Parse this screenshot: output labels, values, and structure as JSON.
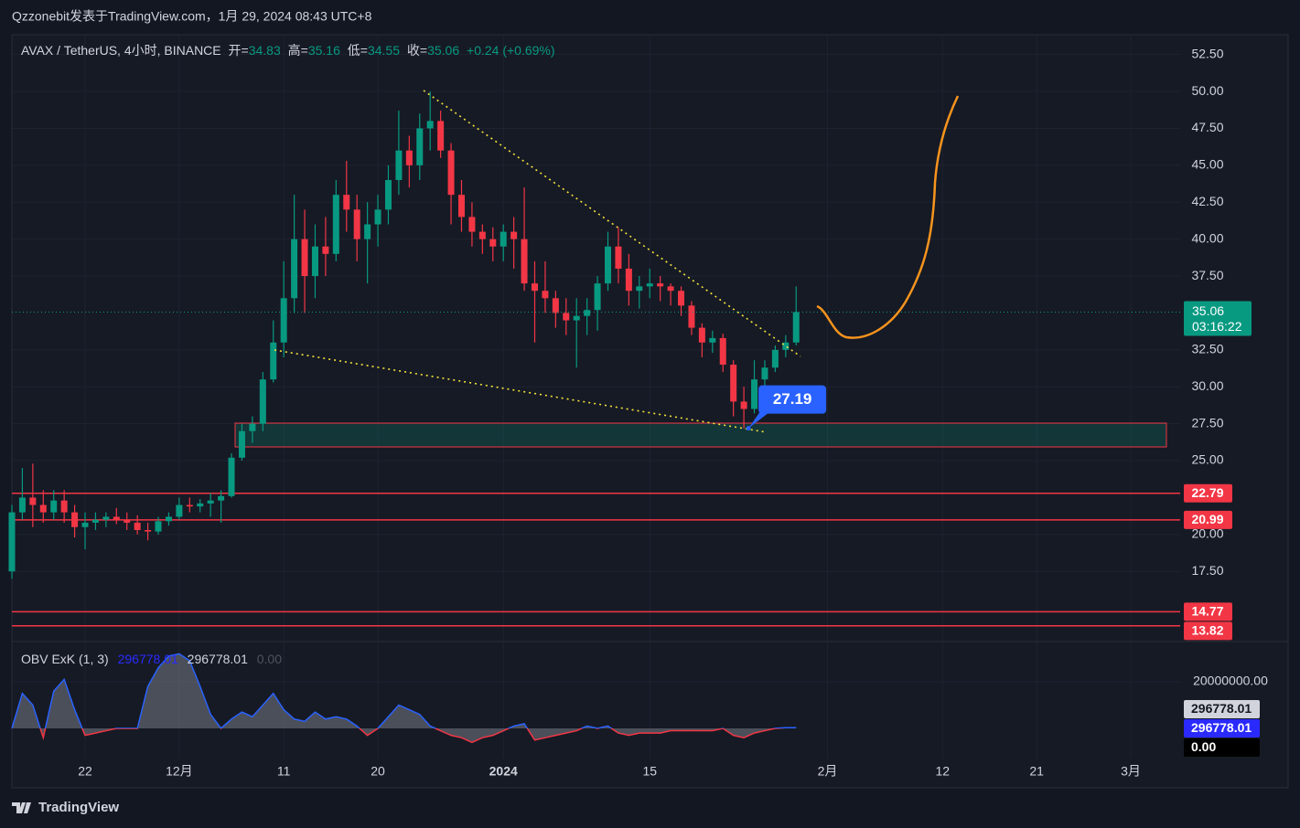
{
  "header": "Qzzonebit发表于TradingView.com，1月 29, 2024 08:43 UTC+8",
  "footer": "TradingView",
  "chart_data": {
    "type": "candlestick",
    "legend": {
      "symbol": "AVAX / TetherUS, 4小时, BINANCE",
      "fields": [
        {
          "label": "开=",
          "value": 34.83
        },
        {
          "label": "高=",
          "value": 35.16
        },
        {
          "label": "低=",
          "value": 34.55
        },
        {
          "label": "收=",
          "value": 35.06
        }
      ],
      "change": "+0.24 (+0.69%)"
    },
    "categories": [
      null,
      null,
      null,
      null,
      null,
      null,
      null,
      "22",
      null,
      null,
      null,
      null,
      null,
      null,
      null,
      null,
      "12月",
      null,
      null,
      null,
      null,
      null,
      null,
      null,
      null,
      null,
      "11",
      null,
      null,
      null,
      null,
      null,
      null,
      null,
      null,
      "20",
      null,
      null,
      null,
      null,
      null,
      null,
      null,
      null,
      null,
      null,
      null,
      "2024",
      null,
      null,
      null,
      null,
      null,
      null,
      null,
      null,
      null,
      null,
      null,
      null,
      null,
      "15",
      null,
      null,
      null,
      null,
      null,
      null,
      null,
      null,
      null,
      null,
      null,
      null,
      null,
      null,
      null,
      null,
      "2月",
      null,
      null,
      null,
      null,
      null,
      null,
      null,
      null,
      null,
      null,
      "12",
      null,
      null,
      null,
      null,
      null,
      null,
      null,
      null,
      "21",
      null,
      null,
      null,
      null,
      null,
      null,
      null,
      null,
      "3月",
      null,
      null,
      null
    ],
    "ohlc": {
      "up_color": "#089981",
      "down_color": "#f23645",
      "open": [
        17.5,
        21.5,
        22.5,
        22,
        21.5,
        22.3,
        21.5,
        20.5,
        20.8,
        21,
        21.2,
        21,
        20.8,
        20.3,
        20.2,
        20.9,
        21.2,
        22,
        21.9,
        22.1,
        22.3,
        22.6,
        25.2,
        27,
        27.5,
        30.5,
        33,
        36,
        40,
        37.5,
        39.5,
        39,
        43,
        42,
        40,
        41,
        42,
        44,
        46,
        45,
        47.5,
        48,
        46,
        43,
        41.5,
        40.5,
        40,
        39.5,
        40.5,
        40,
        37,
        36.5,
        36,
        35,
        34.5,
        34.8,
        35.2,
        37,
        39.5,
        38,
        36.5,
        36.8,
        37,
        36.8,
        36.5,
        35.5,
        34,
        33,
        33.3,
        31.5,
        29,
        28.5,
        30.5,
        31.3,
        32.5,
        33,
        null,
        null,
        null,
        null,
        null,
        null,
        null,
        null,
        null,
        null,
        null,
        null,
        null,
        null,
        null,
        null,
        null,
        null,
        null,
        null,
        null,
        null,
        null,
        null,
        null,
        null,
        null,
        null,
        null,
        null,
        null,
        null,
        null,
        null,
        null
      ],
      "high": [
        22,
        24.5,
        24.8,
        23,
        23,
        23,
        22,
        21.5,
        21.5,
        21.5,
        21.8,
        21.5,
        21.3,
        20.8,
        21.2,
        21.5,
        22.5,
        22.5,
        22.4,
        22.8,
        23,
        25.5,
        27.5,
        28,
        31,
        34.5,
        38.5,
        43,
        42,
        41,
        41.5,
        44,
        45.3,
        43,
        42.5,
        43,
        45,
        48.7,
        47,
        48.5,
        50,
        48.7,
        46.5,
        44,
        42.5,
        41,
        40.8,
        41,
        41.5,
        43.5,
        38.5,
        38.5,
        36.5,
        36,
        36,
        36,
        37.5,
        40.5,
        40.8,
        39,
        37.5,
        38,
        37.5,
        37,
        36.8,
        35.8,
        34.3,
        33.8,
        33.6,
        31.8,
        30,
        31.8,
        31.8,
        32.8,
        33.5,
        36.8,
        null,
        null,
        null,
        null,
        null,
        null,
        null,
        null,
        null,
        null,
        null,
        null,
        null,
        null,
        null,
        null,
        null,
        null,
        null,
        null,
        null,
        null,
        null,
        null,
        null,
        null,
        null,
        null,
        null,
        null,
        null,
        null,
        null,
        null,
        null
      ],
      "low": [
        17,
        21,
        20.5,
        20.8,
        21,
        20.8,
        19.8,
        19,
        20.3,
        20.5,
        20.7,
        20.3,
        20,
        19.6,
        20,
        20.6,
        21,
        21.5,
        21.5,
        21.2,
        20.8,
        22.5,
        25,
        26.2,
        27,
        30.3,
        32,
        35,
        35,
        36,
        37.5,
        38.5,
        40.5,
        38.5,
        37,
        39.5,
        41,
        43,
        43.5,
        44,
        46,
        45.5,
        41,
        40.5,
        39.5,
        39,
        38.5,
        38.5,
        38,
        36.5,
        33,
        35,
        34,
        33.5,
        31.3,
        33.5,
        33.8,
        36.5,
        37,
        35.5,
        35.3,
        36,
        35.8,
        35.5,
        34.8,
        33.5,
        32,
        32.3,
        31,
        28,
        27.19,
        28.2,
        30,
        31,
        32,
        32.8,
        null,
        null,
        null,
        null,
        null,
        null,
        null,
        null,
        null,
        null,
        null,
        null,
        null,
        null,
        null,
        null,
        null,
        null,
        null,
        null,
        null,
        null,
        null,
        null,
        null,
        null,
        null,
        null,
        null,
        null,
        null,
        null,
        null,
        null,
        null
      ],
      "close": [
        21.5,
        22.5,
        22,
        21.5,
        22.3,
        21.5,
        20.5,
        20.8,
        21,
        21.2,
        21,
        20.8,
        20.3,
        20.2,
        20.9,
        21.2,
        22,
        21.9,
        22.1,
        22.3,
        22.6,
        25.2,
        27,
        27.5,
        30.5,
        33,
        36,
        40,
        37.5,
        39.5,
        39,
        43,
        42,
        40,
        41,
        42,
        44,
        46,
        45,
        47.5,
        48,
        46,
        43,
        41.5,
        40.5,
        40,
        39.5,
        40.5,
        40,
        37,
        36.5,
        36,
        35,
        34.5,
        34.8,
        35.2,
        37,
        39.5,
        38,
        36.5,
        36.8,
        37,
        36.8,
        36.5,
        35.5,
        34,
        33,
        33.3,
        31.5,
        29,
        28.5,
        30.5,
        31.3,
        32.5,
        33,
        35.06,
        null,
        null,
        null,
        null,
        null,
        null,
        null,
        null,
        null,
        null,
        null,
        null,
        null,
        null,
        null,
        null,
        null,
        null,
        null,
        null,
        null,
        null,
        null,
        null,
        null,
        null,
        null,
        null,
        null,
        null,
        null,
        null,
        null,
        null,
        null
      ]
    },
    "ylim": [
      12.75,
      53.84
    ],
    "yticks": [
      {
        "value": 17.5,
        "label": "17.50"
      },
      {
        "value": 20,
        "label": "20.00"
      },
      {
        "value": 25,
        "label": "25.00"
      },
      {
        "value": 27.5,
        "label": "27.50"
      },
      {
        "value": 30,
        "label": "30.00"
      },
      {
        "value": 32.5,
        "label": "32.50"
      },
      {
        "value": 37.5,
        "label": "37.50"
      },
      {
        "value": 40,
        "label": "40.00"
      },
      {
        "value": 42.5,
        "label": "42.50"
      },
      {
        "value": 45,
        "label": "45.00"
      },
      {
        "value": 47.5,
        "label": "47.50"
      },
      {
        "value": 50,
        "label": "50.00"
      },
      {
        "value": 52.5,
        "label": "52.50"
      }
    ],
    "grid": true,
    "last_price": 35.06,
    "countdown": "03:16:22",
    "levels": [
      22.79,
      20.99,
      14.77,
      13.82
    ],
    "level_color": "#f23645",
    "zone": [
      25.93,
      27.54
    ],
    "callout": 27.19,
    "obv": {
      "label": "OBV ExK (1, 3)",
      "readouts": [
        "296778.01",
        "296778.01",
        "0.00"
      ],
      "values": [
        0,
        15000000,
        10000000,
        -4000000,
        16000000,
        21000000,
        8000000,
        -3000000,
        -2000000,
        -1000000,
        0,
        0,
        0,
        18000000,
        26000000,
        31000000,
        32000000,
        29000000,
        18000000,
        6000000,
        0,
        4000000,
        7000000,
        5000000,
        10000000,
        15000000,
        8000000,
        4000000,
        3000000,
        7000000,
        4000000,
        5000000,
        4000000,
        1000000,
        -3000000,
        0,
        5000000,
        10000000,
        8000000,
        6000000,
        1000000,
        -1000000,
        -3000000,
        -4000000,
        -6000000,
        -4000000,
        -3000000,
        -1000000,
        1000000,
        2000000,
        -5000000,
        -4000000,
        -3000000,
        -2000000,
        -1000000,
        1000000,
        0,
        1000000,
        -2000000,
        -3000000,
        -2000000,
        -2000000,
        -2000000,
        -1000000,
        -1000000,
        -1000000,
        -1000000,
        -1000000,
        0,
        -3000000,
        -4000000,
        -2000000,
        -1000000,
        0,
        300000,
        296778.01,
        null,
        null,
        null,
        null,
        null,
        null,
        null,
        null,
        null,
        null,
        null,
        null,
        null,
        null,
        null,
        null,
        null,
        null,
        null,
        null,
        null,
        null,
        null,
        null,
        null,
        null,
        null,
        null,
        null,
        null,
        null,
        null,
        null,
        null,
        null
      ],
      "up_color": "#2962ff",
      "down_color": "#f23645",
      "ylim": [
        -25490000,
        37250000
      ],
      "yticks": [
        {
          "value": 20000000,
          "label": "20000000.00"
        }
      ]
    }
  }
}
